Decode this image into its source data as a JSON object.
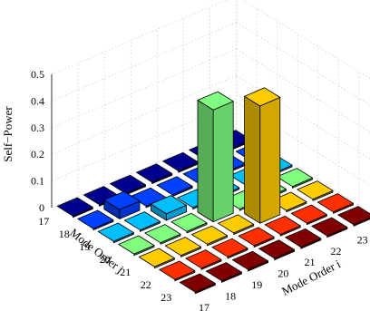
{
  "chart_data": {
    "type": "bar3d",
    "xlabel": "Mode Order i",
    "ylabel": "Mode Order j",
    "zlabel": "Self−Power",
    "x_categories": [
      "17",
      "18",
      "19",
      "20",
      "21",
      "22",
      "23"
    ],
    "y_categories": [
      "17",
      "18",
      "19",
      "20",
      "21",
      "22",
      "23"
    ],
    "zlim": [
      0,
      0.5
    ],
    "z_ticks": [
      "0",
      "0.1",
      "0.2",
      "0.3",
      "0.4",
      "0.5"
    ],
    "grid": true,
    "colormap": "jet",
    "row_colors": [
      "#00008f",
      "#0040ff",
      "#00bfff",
      "#80ff80",
      "#ffcc00",
      "#ff3000",
      "#800000"
    ],
    "values": [
      [
        0,
        0,
        0,
        0,
        0,
        0,
        0
      ],
      [
        0,
        0.035,
        0,
        0,
        0,
        0,
        0
      ],
      [
        0,
        0,
        0.025,
        0,
        0,
        0,
        0
      ],
      [
        0,
        0,
        0,
        0.42,
        0,
        0,
        0
      ],
      [
        0,
        0,
        0,
        0,
        0.44,
        0,
        0
      ],
      [
        0,
        0,
        0,
        0,
        0,
        0,
        0
      ],
      [
        0,
        0,
        0,
        0,
        0,
        0,
        0
      ]
    ],
    "values_note_rows": "values[i_index][j_index]"
  }
}
